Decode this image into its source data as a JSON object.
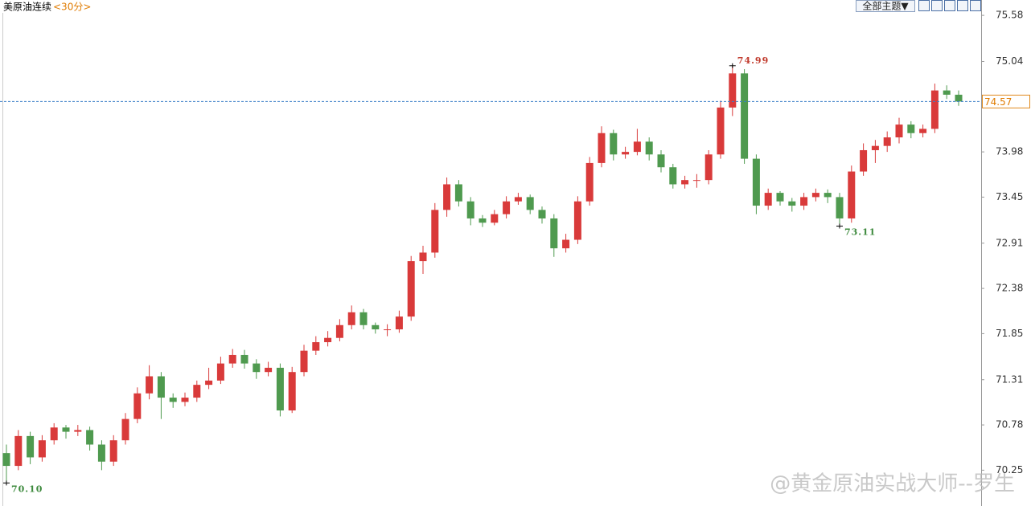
{
  "chart_data": {
    "type": "candlestick",
    "title": "美原油连续",
    "subtitle": "<30分>",
    "toolbar_button": "全部主题▼",
    "watermark": "@黄金原油实战大师--罗生",
    "up_color": "#d93a3a",
    "down_color": "#4f9a4f",
    "ylim": [
      69.83,
      75.76
    ],
    "yticks": [
      75.58,
      75.04,
      73.98,
      73.45,
      72.91,
      72.38,
      71.85,
      71.31,
      70.78,
      70.25
    ],
    "last_price": 74.57,
    "annotations": [
      {
        "value": 74.99,
        "label": "74.99"
      },
      {
        "value": 73.11,
        "label": "73.11"
      },
      {
        "value": 70.1,
        "label": "70.10"
      }
    ],
    "open": [
      70.45,
      70.3,
      70.65,
      70.4,
      70.6,
      70.75,
      70.7,
      70.72,
      70.55,
      70.35,
      70.6,
      70.85,
      71.15,
      71.35,
      71.1,
      71.05,
      71.1,
      71.25,
      71.3,
      71.5,
      71.6,
      71.5,
      71.4,
      71.45,
      70.95,
      71.4,
      71.65,
      71.75,
      71.8,
      71.95,
      72.1,
      71.95,
      71.9,
      71.9,
      72.05,
      72.7,
      72.8,
      73.3,
      73.6,
      73.4,
      73.2,
      73.15,
      73.25,
      73.4,
      73.45,
      73.3,
      73.2,
      72.85,
      72.95,
      73.4,
      73.85,
      74.2,
      73.95,
      73.98,
      74.1,
      73.95,
      73.8,
      73.6,
      73.65,
      73.65,
      73.95,
      74.5,
      74.9,
      73.9,
      73.35,
      73.5,
      73.4,
      73.35,
      73.45,
      73.5,
      73.45,
      73.2,
      73.75,
      74.0,
      74.05,
      74.15,
      74.3,
      74.2,
      74.25,
      74.7,
      74.65
    ],
    "high": [
      70.55,
      70.72,
      70.7,
      70.66,
      70.8,
      70.78,
      70.78,
      70.76,
      70.6,
      70.66,
      70.92,
      71.22,
      71.48,
      71.4,
      71.15,
      71.16,
      71.3,
      71.45,
      71.58,
      71.67,
      71.66,
      71.55,
      71.52,
      71.5,
      71.46,
      71.72,
      71.82,
      71.88,
      72.02,
      72.18,
      72.14,
      71.98,
      71.96,
      72.12,
      72.76,
      72.88,
      73.38,
      73.68,
      73.65,
      73.45,
      73.24,
      73.3,
      73.46,
      73.5,
      73.48,
      73.34,
      73.25,
      73.02,
      73.46,
      73.92,
      74.28,
      74.24,
      74.04,
      74.25,
      74.15,
      74.0,
      73.84,
      73.7,
      73.72,
      74.0,
      74.58,
      74.99,
      74.95,
      73.95,
      73.55,
      73.52,
      73.44,
      73.5,
      73.55,
      73.54,
      73.5,
      73.82,
      74.08,
      74.12,
      74.22,
      74.38,
      74.34,
      74.3,
      74.78,
      74.76,
      74.7
    ],
    "low": [
      70.1,
      70.25,
      70.32,
      70.35,
      70.55,
      70.62,
      70.65,
      70.48,
      70.25,
      70.3,
      70.55,
      70.8,
      71.08,
      70.85,
      70.98,
      71.0,
      71.05,
      71.2,
      71.26,
      71.45,
      71.44,
      71.32,
      71.35,
      70.88,
      70.92,
      71.35,
      71.6,
      71.7,
      71.76,
      71.9,
      71.9,
      71.85,
      71.82,
      71.86,
      72.0,
      72.55,
      72.74,
      73.22,
      73.34,
      73.12,
      73.1,
      73.12,
      73.2,
      73.36,
      73.25,
      73.14,
      72.75,
      72.8,
      72.9,
      73.35,
      73.8,
      73.88,
      73.9,
      73.94,
      73.88,
      73.74,
      73.55,
      73.55,
      73.56,
      73.6,
      73.9,
      74.4,
      73.84,
      73.25,
      73.3,
      73.35,
      73.28,
      73.3,
      73.4,
      73.38,
      73.11,
      73.15,
      73.7,
      73.85,
      73.98,
      74.08,
      74.14,
      74.15,
      74.2,
      74.6,
      74.52
    ],
    "close": [
      70.3,
      70.65,
      70.4,
      70.6,
      70.75,
      70.7,
      70.72,
      70.55,
      70.35,
      70.6,
      70.85,
      71.15,
      71.35,
      71.1,
      71.05,
      71.1,
      71.25,
      71.3,
      71.5,
      71.6,
      71.5,
      71.4,
      71.45,
      70.95,
      71.4,
      71.65,
      71.75,
      71.8,
      71.95,
      72.1,
      71.95,
      71.9,
      71.9,
      72.05,
      72.7,
      72.8,
      73.3,
      73.6,
      73.4,
      73.2,
      73.15,
      73.25,
      73.4,
      73.45,
      73.3,
      73.2,
      72.85,
      72.95,
      73.4,
      73.85,
      74.2,
      73.95,
      73.98,
      74.1,
      73.95,
      73.8,
      73.6,
      73.65,
      73.65,
      73.95,
      74.5,
      74.9,
      73.9,
      73.35,
      73.5,
      73.4,
      73.35,
      73.45,
      73.5,
      73.45,
      73.2,
      73.75,
      74.0,
      74.05,
      74.15,
      74.3,
      74.2,
      74.25,
      74.7,
      74.65,
      74.57
    ]
  }
}
